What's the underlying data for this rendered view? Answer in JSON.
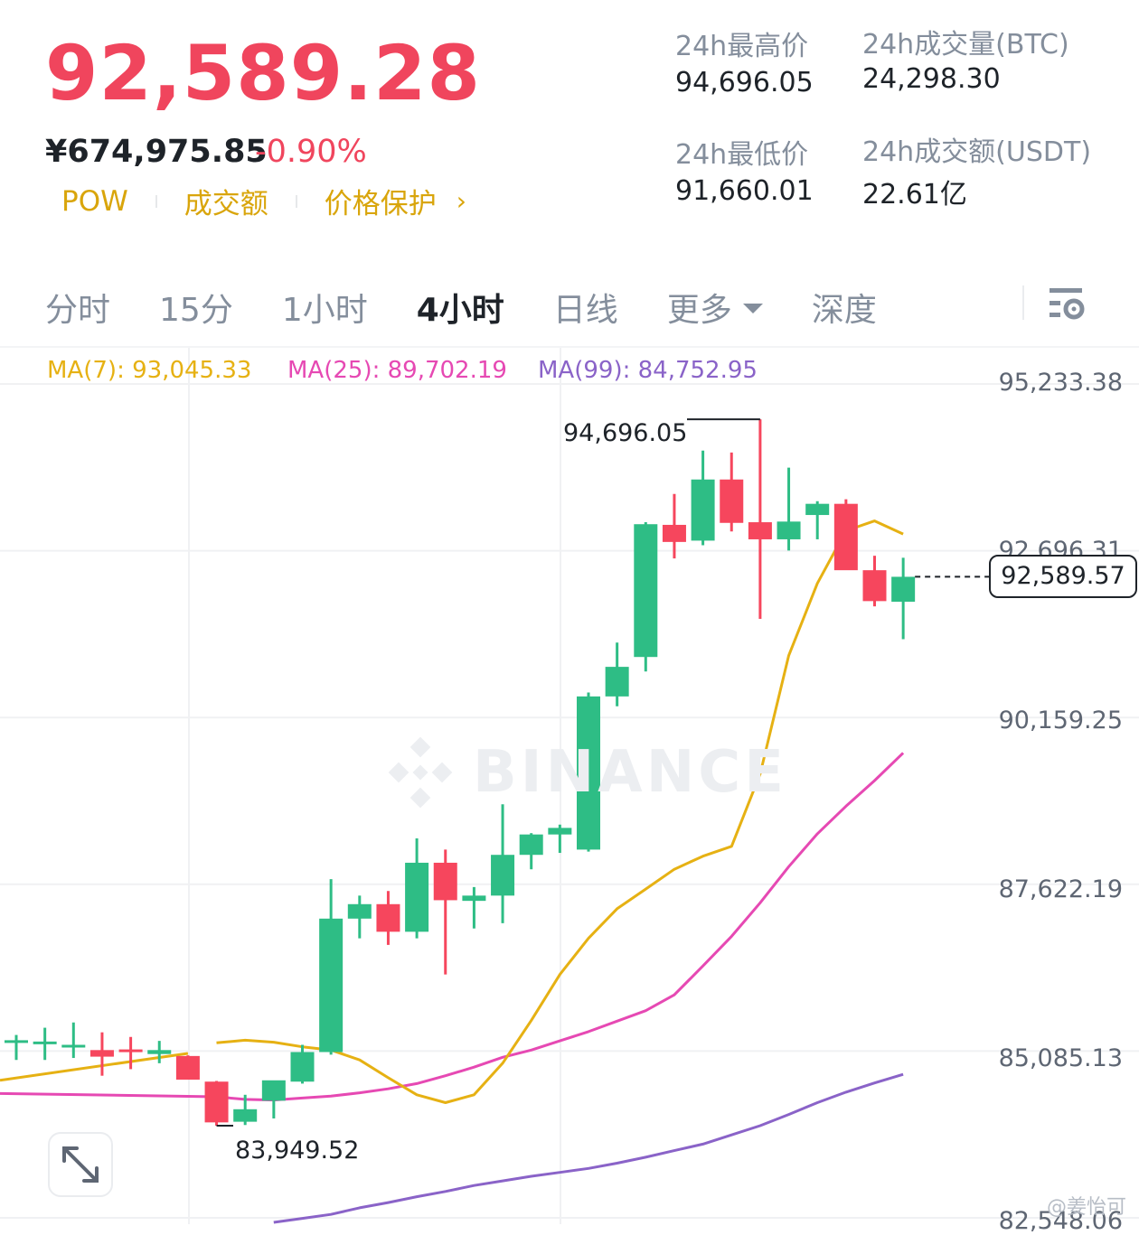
{
  "header": {
    "last_price": "92,589.28",
    "cny_price": "¥674,975.85",
    "change_pct": "-0.90%",
    "tags": [
      "POW",
      "成交额",
      "价格保护"
    ],
    "tag_arrow": "›"
  },
  "stats": {
    "high_label": "24h最高价",
    "high_value": "94,696.05",
    "low_label": "24h最低价",
    "low_value": "91,660.01",
    "vol_btc_label": "24h成交量(BTC)",
    "vol_btc_value": "24,298.30",
    "vol_usdt_label": "24h成交额(USDT)",
    "vol_usdt_value": "22.61亿"
  },
  "tabs": [
    {
      "label": "分时",
      "active": false
    },
    {
      "label": "15分",
      "active": false
    },
    {
      "label": "1小时",
      "active": false
    },
    {
      "label": "4小时",
      "active": true
    },
    {
      "label": "日线",
      "active": false
    },
    {
      "label": "更多",
      "active": false,
      "dropdown": true
    },
    {
      "label": "深度",
      "active": false
    }
  ],
  "icons": {
    "settings": "chart-settings-icon",
    "fullscreen": "expand-icon",
    "watermark": "binance-logo-icon"
  },
  "watermark_text": "BINANCE",
  "credit": "@姜怡可",
  "colors": {
    "up": "#2ebd85",
    "down": "#f6465d",
    "ma7": "#e6b113",
    "ma25": "#e649b3",
    "ma99": "#8a63c8",
    "price": "#f0455d"
  },
  "chart_data": {
    "type": "candlestick",
    "interval": "4小时",
    "ma_legend": [
      {
        "name": "MA(7)",
        "value": "93,045.33"
      },
      {
        "name": "MA(25)",
        "value": "89,702.19"
      },
      {
        "name": "MA(99)",
        "value": "84,752.95"
      }
    ],
    "y_ticks": [
      "95,233.38",
      "92,696.31",
      "90,159.25",
      "87,622.19",
      "85,085.13",
      "82,548.06"
    ],
    "ylim": [
      82548.06,
      95233.38
    ],
    "current_price": "92,589.57",
    "high_marker": "94,696.05",
    "low_marker": "83,949.52",
    "candles": [
      {
        "o": 85210,
        "h": 85330,
        "l": 84950,
        "c": 85250
      },
      {
        "o": 85190,
        "h": 85440,
        "l": 84950,
        "c": 85230
      },
      {
        "o": 85150,
        "h": 85520,
        "l": 84980,
        "c": 85180
      },
      {
        "o": 85100,
        "h": 85370,
        "l": 84710,
        "c": 85000
      },
      {
        "o": 85110,
        "h": 85300,
        "l": 84810,
        "c": 85080
      },
      {
        "o": 85040,
        "h": 85240,
        "l": 84900,
        "c": 85100
      },
      {
        "o": 85010,
        "h": 85020,
        "l": 84660,
        "c": 84650
      },
      {
        "o": 84620,
        "h": 84630,
        "l": 83950,
        "c": 84000
      },
      {
        "o": 84010,
        "h": 84420,
        "l": 83960,
        "c": 84200
      },
      {
        "o": 84330,
        "h": 84620,
        "l": 84060,
        "c": 84640
      },
      {
        "o": 84620,
        "h": 85180,
        "l": 84590,
        "c": 85070
      },
      {
        "o": 85070,
        "h": 87700,
        "l": 85030,
        "c": 87100
      },
      {
        "o": 87100,
        "h": 87450,
        "l": 86800,
        "c": 87320
      },
      {
        "o": 87320,
        "h": 87520,
        "l": 86700,
        "c": 86900
      },
      {
        "o": 86900,
        "h": 88320,
        "l": 86800,
        "c": 87950
      },
      {
        "o": 87950,
        "h": 88150,
        "l": 86250,
        "c": 87380
      },
      {
        "o": 87370,
        "h": 87580,
        "l": 86950,
        "c": 87450
      },
      {
        "o": 87450,
        "h": 88840,
        "l": 87030,
        "c": 88070
      },
      {
        "o": 88070,
        "h": 88400,
        "l": 87850,
        "c": 88380
      },
      {
        "o": 88380,
        "h": 88530,
        "l": 88100,
        "c": 88480
      },
      {
        "o": 88150,
        "h": 90540,
        "l": 88120,
        "c": 90480
      },
      {
        "o": 90480,
        "h": 91300,
        "l": 90330,
        "c": 90930
      },
      {
        "o": 91080,
        "h": 93130,
        "l": 90860,
        "c": 93100
      },
      {
        "o": 93090,
        "h": 93560,
        "l": 92580,
        "c": 92830
      },
      {
        "o": 92850,
        "h": 94220,
        "l": 92780,
        "c": 93780
      },
      {
        "o": 93780,
        "h": 94190,
        "l": 92990,
        "c": 93120
      },
      {
        "o": 93130,
        "h": 94696.05,
        "l": 91660,
        "c": 92870
      },
      {
        "o": 92870,
        "h": 93960,
        "l": 92700,
        "c": 93140
      },
      {
        "o": 93240,
        "h": 93450,
        "l": 92870,
        "c": 93410
      },
      {
        "o": 93410,
        "h": 93480,
        "l": 92410,
        "c": 92400
      },
      {
        "o": 92400,
        "h": 92620,
        "l": 91850,
        "c": 91930
      },
      {
        "o": 91920,
        "h": 92590,
        "l": 91350,
        "c": 92300
      }
    ],
    "ma7": [
      null,
      85210,
      85250,
      85220,
      85150,
      85100,
      84950,
      84680,
      84420,
      84300,
      84420,
      84900,
      85550,
      86250,
      86800,
      87250,
      87550,
      87850,
      88050,
      88200,
      89300,
      91100,
      92200,
      93000,
      93150,
      92950
    ],
    "ma25": [
      84390,
      84350,
      84340,
      84370,
      84400,
      84450,
      84510,
      84590,
      84710,
      84840,
      84990,
      85100,
      85240,
      85380,
      85540,
      85700,
      85940,
      86380,
      86830,
      87340,
      87890,
      88390,
      88810,
      89200,
      89620
    ],
    "ma99": [
      82480,
      82540,
      82600,
      82700,
      82780,
      82870,
      82950,
      83040,
      83110,
      83180,
      83240,
      83300,
      83380,
      83470,
      83570,
      83670,
      83810,
      83950,
      84120,
      84300,
      84460,
      84600,
      84730
    ]
  }
}
